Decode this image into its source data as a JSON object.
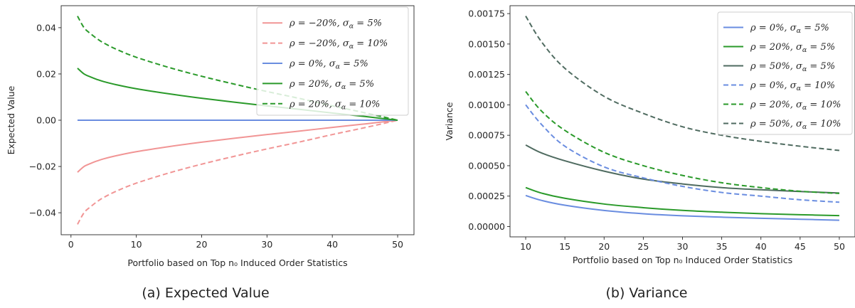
{
  "chart_data": [
    {
      "type": "line",
      "ylabel": "Expected Value",
      "xlabel": "Portfolio based on Top n₀ Induced Order Statistics",
      "caption": "(a) Expected Value",
      "xlim": [
        -1.5,
        52.5
      ],
      "ylim": [
        -0.0495,
        0.0495
      ],
      "xticks": [
        0,
        10,
        20,
        30,
        40,
        50
      ],
      "xtick_labels": [
        "0",
        "10",
        "20",
        "30",
        "40",
        "50"
      ],
      "yticks": [
        -0.04,
        -0.02,
        0.0,
        0.02,
        0.04
      ],
      "ytick_labels": [
        "−0.04",
        "−0.02",
        "0.00",
        "0.02",
        "0.04"
      ],
      "legend_position": "upper-right",
      "series": [
        {
          "name": "ρ = −20%, σα = 5%",
          "color": "#f19595",
          "dash": "solid",
          "x": [
            1,
            2,
            3,
            4,
            5,
            7,
            10,
            15,
            20,
            25,
            30,
            35,
            40,
            45,
            50
          ],
          "y": [
            -0.0225,
            -0.02,
            -0.0187,
            -0.0176,
            -0.0167,
            -0.0153,
            -0.0136,
            -0.0114,
            -0.0095,
            -0.0078,
            -0.0062,
            -0.0047,
            -0.0031,
            -0.0016,
            0.0
          ]
        },
        {
          "name": "ρ = −20%, σα = 10%",
          "color": "#f19595",
          "dash": "dashed",
          "x": [
            1,
            2,
            3,
            4,
            5,
            7,
            10,
            15,
            20,
            25,
            30,
            35,
            40,
            45,
            50
          ],
          "y": [
            -0.045,
            -0.04,
            -0.0374,
            -0.0352,
            -0.0334,
            -0.0306,
            -0.0272,
            -0.0228,
            -0.019,
            -0.0156,
            -0.0124,
            -0.0094,
            -0.0062,
            -0.0032,
            0.0
          ]
        },
        {
          "name": "ρ = 0%, σα = 5%",
          "color": "#6a8de0",
          "dash": "solid",
          "x": [
            1,
            50
          ],
          "y": [
            0.0,
            0.0
          ]
        },
        {
          "name": "ρ = 20%, σα = 5%",
          "color": "#2a9a2a",
          "dash": "solid",
          "x": [
            1,
            2,
            3,
            4,
            5,
            7,
            10,
            15,
            20,
            25,
            30,
            35,
            40,
            45,
            50
          ],
          "y": [
            0.0225,
            0.02,
            0.0187,
            0.0176,
            0.0167,
            0.0153,
            0.0136,
            0.0114,
            0.0095,
            0.0078,
            0.0062,
            0.0047,
            0.0031,
            0.0016,
            0.0
          ]
        },
        {
          "name": "ρ = 20%, σα = 10%",
          "color": "#2a9a2a",
          "dash": "dashed",
          "x": [
            1,
            2,
            3,
            4,
            5,
            7,
            10,
            15,
            20,
            25,
            30,
            35,
            40,
            45,
            50
          ],
          "y": [
            0.045,
            0.04,
            0.0374,
            0.0352,
            0.0334,
            0.0306,
            0.0272,
            0.0228,
            0.019,
            0.0156,
            0.0124,
            0.0094,
            0.0062,
            0.0032,
            0.0
          ]
        }
      ]
    },
    {
      "type": "line",
      "ylabel": "Variance",
      "xlabel": "Portfolio based on Top n₀ Induced Order Statistics",
      "caption": "(b) Variance",
      "xlim": [
        8,
        52
      ],
      "ylim": [
        -8.5e-05,
        0.001815
      ],
      "xticks": [
        10,
        15,
        20,
        25,
        30,
        35,
        40,
        45,
        50
      ],
      "xtick_labels": [
        "10",
        "15",
        "20",
        "25",
        "30",
        "35",
        "40",
        "45",
        "50"
      ],
      "yticks": [
        0.0,
        0.00025,
        0.0005,
        0.00075,
        0.001,
        0.00125,
        0.0015,
        0.00175
      ],
      "ytick_labels": [
        "0.00000",
        "0.00025",
        "0.00050",
        "0.00075",
        "0.00100",
        "0.00125",
        "0.00150",
        "0.00175"
      ],
      "legend_position": "upper-right",
      "series": [
        {
          "name": "ρ = 0%, σα = 5%",
          "color": "#6a8de0",
          "dash": "solid",
          "x": [
            10,
            12,
            15,
            20,
            25,
            30,
            35,
            40,
            45,
            50
          ],
          "y": [
            0.000255,
            0.000215,
            0.000175,
            0.000132,
            0.000105,
            8.8e-05,
            7.7e-05,
            6.8e-05,
            6e-05,
            5.2e-05
          ]
        },
        {
          "name": "ρ = 20%, σα = 5%",
          "color": "#2a9a2a",
          "dash": "solid",
          "x": [
            10,
            12,
            15,
            20,
            25,
            30,
            35,
            40,
            45,
            50
          ],
          "y": [
            0.00032,
            0.000275,
            0.000232,
            0.000185,
            0.000155,
            0.000133,
            0.000118,
            0.000106,
            9.7e-05,
            9e-05
          ]
        },
        {
          "name": "ρ = 50%, σα = 5%",
          "color": "#4f6b60",
          "dash": "solid",
          "x": [
            10,
            12,
            15,
            20,
            25,
            30,
            35,
            40,
            45,
            50
          ],
          "y": [
            0.00067,
            0.000605,
            0.00054,
            0.000455,
            0.00039,
            0.00035,
            0.00032,
            0.000302,
            0.000288,
            0.000275
          ]
        },
        {
          "name": "ρ = 0%, σα = 10%",
          "color": "#6a8de0",
          "dash": "dashed",
          "x": [
            10,
            12,
            15,
            20,
            25,
            30,
            35,
            40,
            45,
            50
          ],
          "y": [
            0.001,
            0.00084,
            0.00066,
            0.00049,
            0.0004,
            0.00033,
            0.00028,
            0.00025,
            0.00022,
            0.0002
          ]
        },
        {
          "name": "ρ = 20%, σα = 10%",
          "color": "#2a9a2a",
          "dash": "dashed",
          "x": [
            10,
            12,
            15,
            20,
            25,
            30,
            35,
            40,
            45,
            50
          ],
          "y": [
            0.00111,
            0.00095,
            0.00079,
            0.00061,
            0.0005,
            0.00042,
            0.00036,
            0.00032,
            0.00029,
            0.000272
          ]
        },
        {
          "name": "ρ = 50%, σα = 10%",
          "color": "#4f6b60",
          "dash": "dashed",
          "x": [
            10,
            12,
            15,
            20,
            25,
            30,
            35,
            40,
            45,
            50
          ],
          "y": [
            0.00173,
            0.00152,
            0.0013,
            0.00107,
            0.00093,
            0.00082,
            0.00075,
            0.0007,
            0.00066,
            0.000625
          ]
        }
      ]
    }
  ]
}
